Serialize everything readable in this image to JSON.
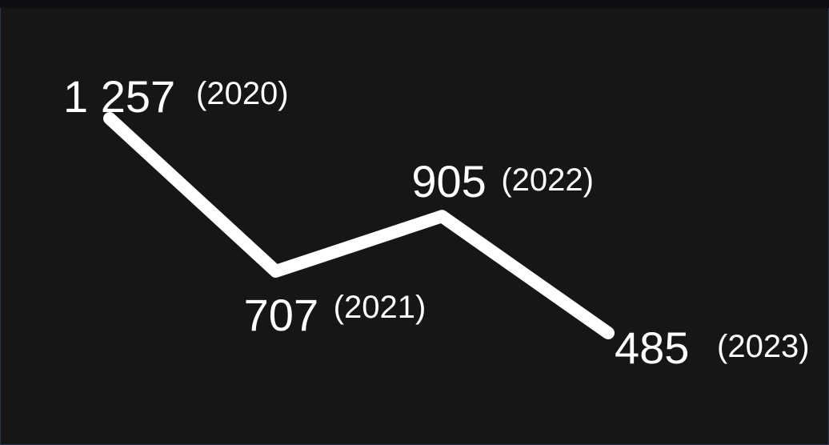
{
  "chart_data": {
    "type": "line",
    "title": "",
    "xlabel": "",
    "ylabel": "",
    "x": [
      "2020",
      "2021",
      "2022",
      "2023"
    ],
    "values": [
      1257,
      707,
      905,
      485
    ],
    "value_labels": [
      "1 257",
      "707",
      "905",
      "485"
    ],
    "year_labels": [
      "(2020)",
      "(2021)",
      "(2022)",
      "(2023)"
    ],
    "grid": false,
    "axes_visible": false,
    "colors": {
      "background": "#161616",
      "line": "#ffffff",
      "text": "#ffffff",
      "border": "#2a3550"
    }
  }
}
